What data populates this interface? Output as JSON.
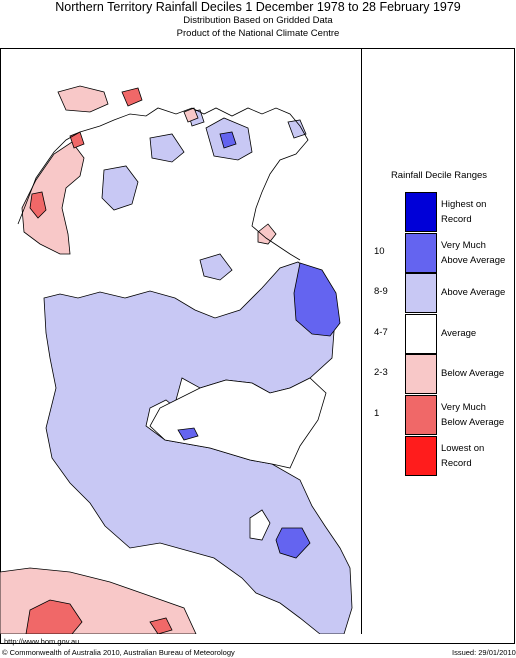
{
  "header": {
    "title": "Northern Territory Rainfall Deciles     1 December 1978 to 28 February 1979",
    "subtitle_1": "Distribution Based on Gridded Data",
    "subtitle_2": "Product of the National Climate Centre"
  },
  "legend": {
    "title": "Rainfall Decile Ranges",
    "items": [
      {
        "code": "",
        "label_1": "Highest on",
        "label_2": "Record",
        "color": "#0000d8"
      },
      {
        "code": "10",
        "label_1": "Very Much",
        "label_2": "Above Average",
        "color": "#6464f0"
      },
      {
        "code": "8-9",
        "label_1": "Above Average",
        "label_2": "",
        "color": "#c8c8f4"
      },
      {
        "code": "4-7",
        "label_1": "Average",
        "label_2": "",
        "color": "#ffffff"
      },
      {
        "code": "2-3",
        "label_1": "Below Average",
        "label_2": "",
        "color": "#f8c8c8"
      },
      {
        "code": "1",
        "label_1": "Very Much",
        "label_2": "Below Average",
        "color": "#f06868"
      },
      {
        "code": "",
        "label_1": "Lowest on",
        "label_2": "Record",
        "color": "#ff1c1c"
      }
    ]
  },
  "footer": {
    "url": "http://www.bom.gov.au",
    "copyright": "© Commonwealth of Australia 2010, Australian Bureau of Meteorology",
    "issued": "Issued: 29/01/2010"
  }
}
